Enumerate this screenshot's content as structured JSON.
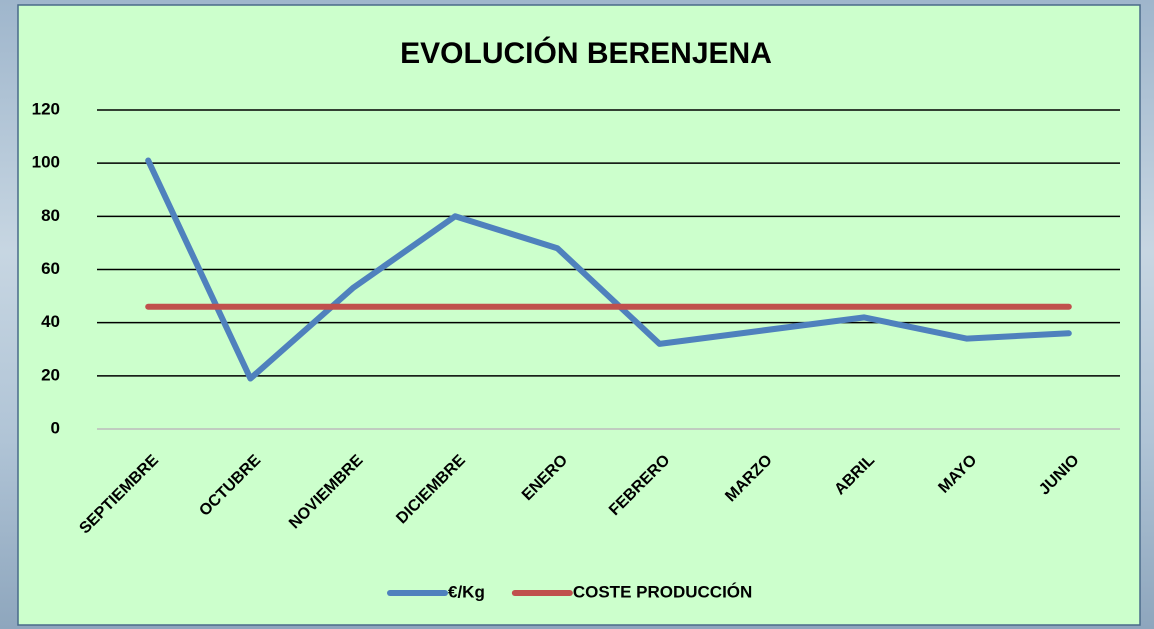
{
  "chart_data": {
    "type": "line",
    "title": "EVOLUCIÓN BERENJENA",
    "categories": [
      "SEPTIEMBRE",
      "OCTUBRE",
      "NOVIEMBRE",
      "DICIEMBRE",
      "ENERO",
      "FEBRERO",
      "MARZO",
      "ABRIL",
      "MAYO",
      "JUNIO"
    ],
    "series": [
      {
        "name": "€/Kg",
        "color": "#4f81bd",
        "values": [
          101,
          19,
          53,
          80,
          68,
          32,
          37,
          42,
          34,
          36
        ]
      },
      {
        "name": "COSTE PRODUCCIÓN",
        "color": "#c0504d",
        "values": [
          46,
          46,
          46,
          46,
          46,
          46,
          46,
          46,
          46,
          46
        ]
      }
    ],
    "ylim": [
      0,
      120
    ],
    "yticks": [
      0,
      20,
      40,
      60,
      80,
      100,
      120
    ],
    "grid": true,
    "legend": "bottom"
  }
}
